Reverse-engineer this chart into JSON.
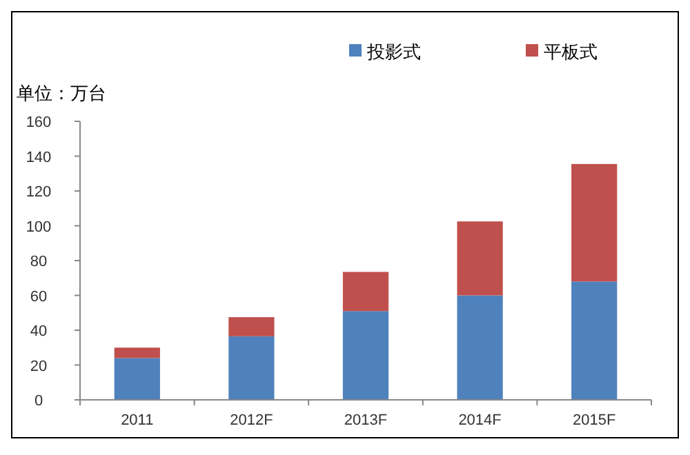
{
  "chart_data": {
    "type": "bar",
    "stacked": true,
    "ylabel": "单位：万台",
    "categories": [
      "2011",
      "2012F",
      "2013F",
      "2014F",
      "2015F"
    ],
    "series": [
      {
        "name": "投影式",
        "color": "#4f81bd",
        "values": [
          24,
          36.5,
          51,
          60,
          68
        ]
      },
      {
        "name": "平板式",
        "color": "#c0504d",
        "values": [
          6,
          11,
          22.5,
          42.5,
          67.5
        ]
      }
    ],
    "ylim": [
      0,
      160
    ],
    "yticks": [
      0,
      20,
      40,
      60,
      80,
      100,
      120,
      140,
      160
    ],
    "grid": false,
    "legend": "top right"
  }
}
